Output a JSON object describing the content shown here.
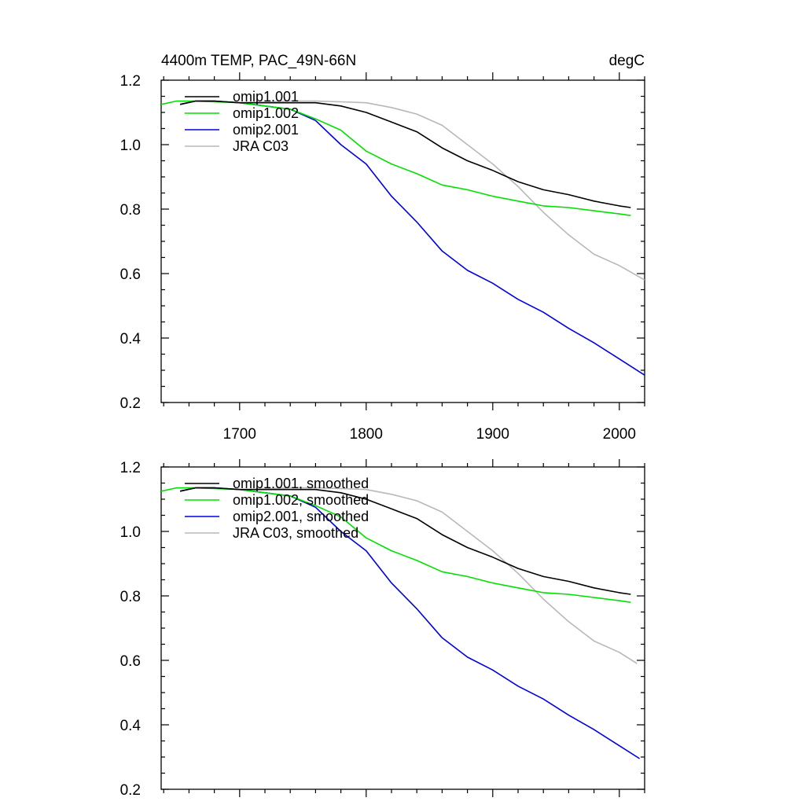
{
  "chart_data": [
    {
      "type": "line",
      "title_left": "4400m TEMP, PAC_49N-66N",
      "title_right": "degC",
      "xlabel": "",
      "ylabel": "",
      "xlim": [
        1638,
        2020
      ],
      "ylim": [
        0.2,
        1.2
      ],
      "xticks": [
        1700,
        1800,
        1900,
        2000
      ],
      "xtick_labels": [
        "1700",
        "1800",
        "1900",
        "2000"
      ],
      "yticks": [
        0.2,
        0.4,
        0.6,
        0.8,
        1.0,
        1.2
      ],
      "ytick_labels": [
        "0.2",
        "0.4",
        "0.6",
        "0.8",
        "1.0",
        "1.2"
      ],
      "legend_position": "top-left",
      "series": [
        {
          "name": "omip1.001",
          "color": "#000000",
          "x": [
            1653,
            1665,
            1680,
            1700,
            1720,
            1740,
            1760,
            1780,
            1800,
            1820,
            1840,
            1860,
            1880,
            1900,
            1920,
            1940,
            1960,
            1980,
            2000,
            2009
          ],
          "y": [
            1.125,
            1.135,
            1.135,
            1.13,
            1.13,
            1.13,
            1.13,
            1.12,
            1.1,
            1.07,
            1.04,
            0.99,
            0.95,
            0.92,
            0.885,
            0.86,
            0.845,
            0.825,
            0.81,
            0.805
          ]
        },
        {
          "name": "omip1.002",
          "color": "#00e000",
          "x": [
            1638,
            1650,
            1665,
            1680,
            1700,
            1720,
            1740,
            1760,
            1780,
            1800,
            1820,
            1840,
            1860,
            1880,
            1900,
            1920,
            1940,
            1960,
            1980,
            2000,
            2009
          ],
          "y": [
            1.125,
            1.135,
            1.135,
            1.133,
            1.13,
            1.12,
            1.11,
            1.08,
            1.045,
            0.98,
            0.94,
            0.91,
            0.875,
            0.86,
            0.84,
            0.825,
            0.81,
            0.805,
            0.795,
            0.785,
            0.78
          ]
        },
        {
          "name": "omip2.001",
          "color": "#0000e6",
          "x": [
            1653,
            1665,
            1680,
            1700,
            1720,
            1740,
            1760,
            1780,
            1800,
            1820,
            1840,
            1860,
            1880,
            1900,
            1920,
            1940,
            1960,
            1980,
            2000,
            2020
          ],
          "y": [
            1.125,
            1.135,
            1.135,
            1.13,
            1.12,
            1.11,
            1.075,
            1.0,
            0.94,
            0.84,
            0.76,
            0.67,
            0.61,
            0.57,
            0.52,
            0.48,
            0.43,
            0.385,
            0.335,
            0.285
          ]
        },
        {
          "name": "JRA C03",
          "color": "#b8b8b8",
          "x": [
            1700,
            1720,
            1740,
            1760,
            1780,
            1800,
            1820,
            1840,
            1860,
            1880,
            1900,
            1920,
            1940,
            1960,
            1980,
            2000,
            2020
          ],
          "y": [
            1.13,
            1.132,
            1.135,
            1.135,
            1.133,
            1.13,
            1.115,
            1.095,
            1.06,
            1.0,
            0.94,
            0.87,
            0.79,
            0.72,
            0.66,
            0.625,
            0.58
          ]
        }
      ]
    },
    {
      "type": "line",
      "title_left": "",
      "title_right": "",
      "xlabel": "",
      "ylabel": "",
      "xlim": [
        1638,
        2020
      ],
      "ylim": [
        0.2,
        1.2
      ],
      "xticks": [
        1700,
        1800,
        1900,
        2000
      ],
      "xtick_labels": [],
      "yticks": [
        0.2,
        0.4,
        0.6,
        0.8,
        1.0,
        1.2
      ],
      "ytick_labels": [
        "0.2",
        "0.4",
        "0.6",
        "0.8",
        "1.0",
        "1.2"
      ],
      "legend_position": "top-left",
      "series": [
        {
          "name": "omip1.001, smoothed",
          "color": "#000000",
          "x": [
            1653,
            1665,
            1680,
            1700,
            1720,
            1740,
            1760,
            1780,
            1800,
            1820,
            1840,
            1860,
            1880,
            1900,
            1920,
            1940,
            1960,
            1980,
            2000,
            2009
          ],
          "y": [
            1.125,
            1.135,
            1.135,
            1.13,
            1.13,
            1.13,
            1.13,
            1.12,
            1.1,
            1.07,
            1.04,
            0.99,
            0.95,
            0.92,
            0.885,
            0.86,
            0.845,
            0.825,
            0.81,
            0.805
          ]
        },
        {
          "name": "omip1.002, smoothed",
          "color": "#00e000",
          "x": [
            1638,
            1650,
            1665,
            1680,
            1700,
            1720,
            1740,
            1760,
            1780,
            1800,
            1820,
            1840,
            1860,
            1880,
            1900,
            1920,
            1940,
            1960,
            1980,
            2000,
            2009
          ],
          "y": [
            1.125,
            1.135,
            1.135,
            1.133,
            1.13,
            1.12,
            1.11,
            1.08,
            1.045,
            0.98,
            0.94,
            0.91,
            0.875,
            0.86,
            0.84,
            0.825,
            0.81,
            0.805,
            0.795,
            0.785,
            0.78
          ]
        },
        {
          "name": "omip2.001, smoothed",
          "color": "#0000e6",
          "x": [
            1653,
            1665,
            1680,
            1700,
            1720,
            1740,
            1760,
            1780,
            1800,
            1820,
            1840,
            1860,
            1880,
            1900,
            1920,
            1940,
            1960,
            1980,
            2000,
            2016
          ],
          "y": [
            1.125,
            1.135,
            1.135,
            1.13,
            1.12,
            1.11,
            1.075,
            1.0,
            0.94,
            0.84,
            0.76,
            0.67,
            0.61,
            0.57,
            0.52,
            0.48,
            0.43,
            0.385,
            0.335,
            0.295
          ]
        },
        {
          "name": "JRA C03, smoothed",
          "color": "#b8b8b8",
          "x": [
            1700,
            1720,
            1740,
            1760,
            1780,
            1800,
            1820,
            1840,
            1860,
            1880,
            1900,
            1920,
            1940,
            1960,
            1980,
            2000,
            2014
          ],
          "y": [
            1.13,
            1.132,
            1.135,
            1.135,
            1.133,
            1.13,
            1.115,
            1.095,
            1.06,
            1.0,
            0.94,
            0.87,
            0.79,
            0.72,
            0.66,
            0.625,
            0.59
          ]
        }
      ]
    }
  ]
}
